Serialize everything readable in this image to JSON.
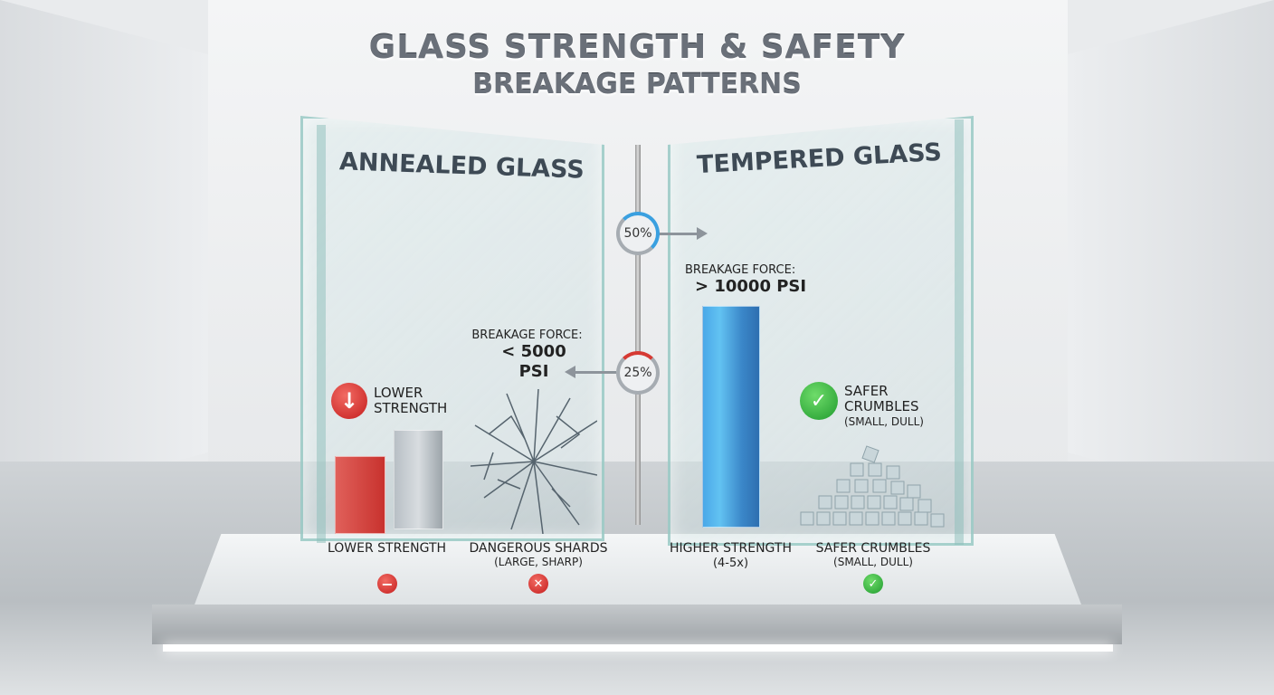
{
  "title": {
    "line1": "GLASS STRENGTH & SAFETY",
    "line2": "BREAKAGE PATTERNS"
  },
  "annealed": {
    "title": "ANNEALED GLASS",
    "force_label": "BREAKAGE FORCE:",
    "force_value": "< 5000 PSI",
    "callout": "LOWER STRENGTH",
    "bottom_left": "LOWER STRENGTH",
    "bottom_right_1": "DANGEROUS SHARDS",
    "bottom_right_2": "(LARGE, SHARP)",
    "color": "#d63a34"
  },
  "tempered": {
    "title": "TEMPERED GLASS",
    "force_label": "BREAKAGE FORCE:",
    "force_value": "> 10000 PSI",
    "callout_1": "SAFER",
    "callout_2": "CRUMBLES",
    "callout_3": "(SMALL, DULL)",
    "bottom_left_1": "HIGHER STRENGTH",
    "bottom_left_2": "(4-5x)",
    "bottom_right_1": "SAFER CRUMBLES",
    "bottom_right_2": "(SMALL, DULL)",
    "color": "#3a8fd8"
  },
  "gauges": [
    {
      "label": "50%",
      "value": 50
    },
    {
      "label": "25%",
      "value": 25
    }
  ]
}
